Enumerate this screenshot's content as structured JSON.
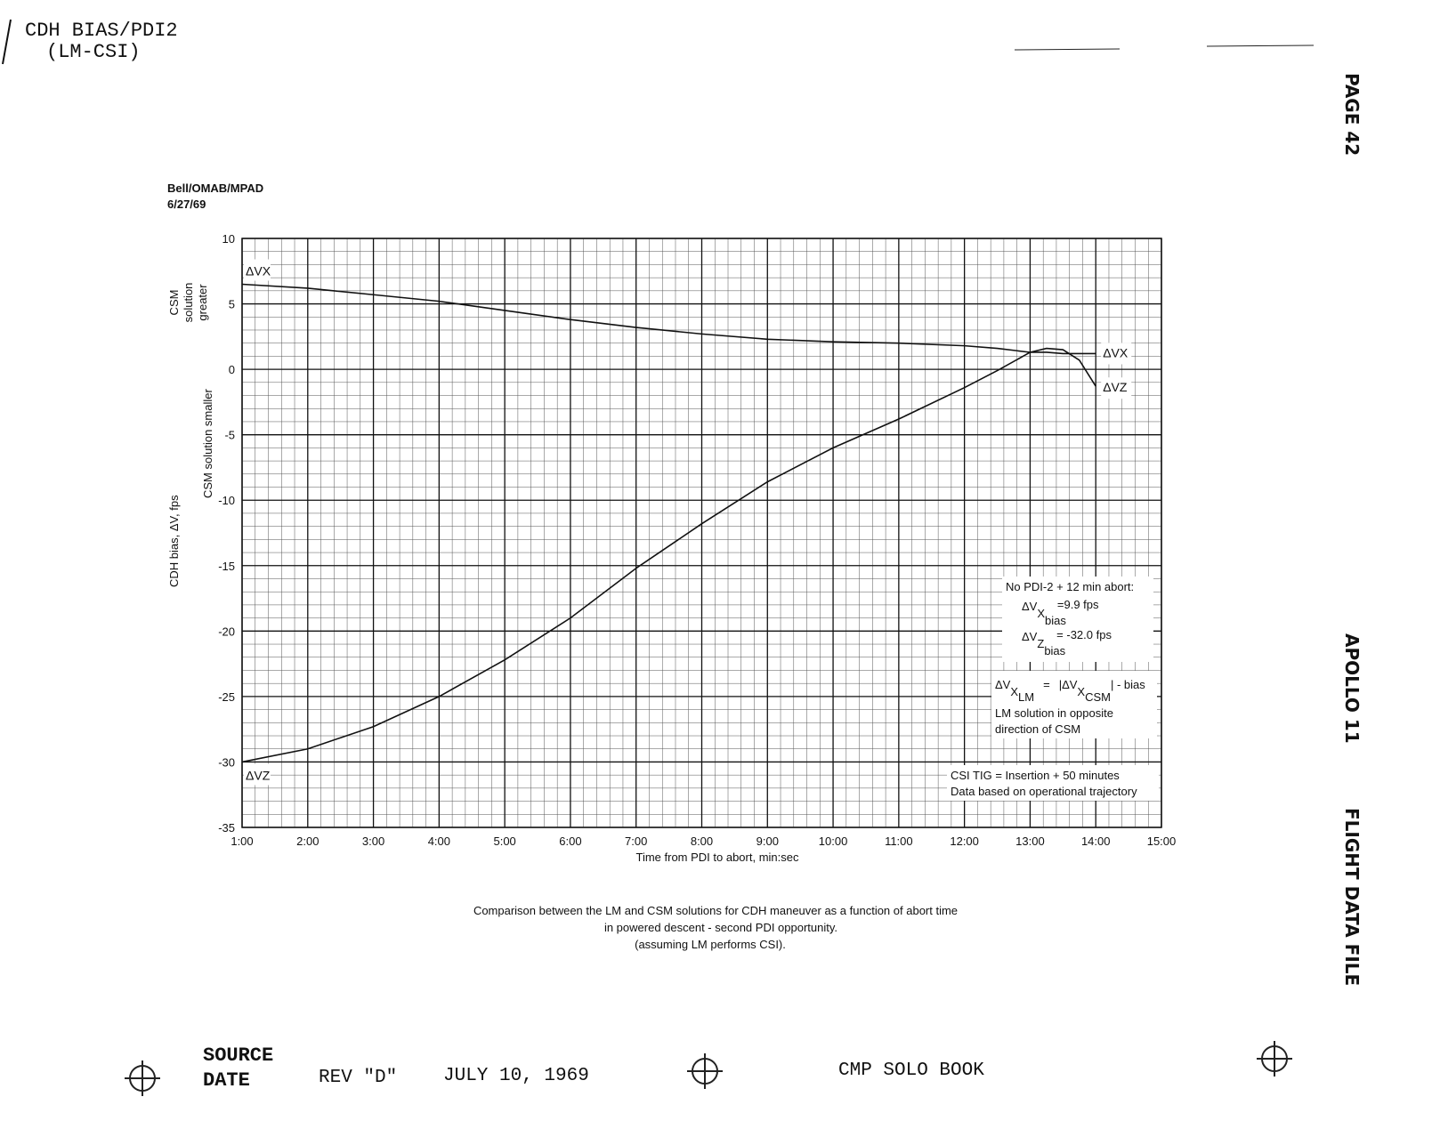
{
  "document": {
    "header": {
      "title": "CDH BIAS/PDI2",
      "subtitle": "(LM-CSI)"
    },
    "side": {
      "page": "PAGE 42",
      "mission": "APOLLO 11",
      "book": "FLIGHT DATA FILE"
    },
    "footer": {
      "source": "SOURCE",
      "date": "DATE",
      "rev": "REV \"D\"",
      "date_value": "JULY 10, 1969",
      "book": "CMP SOLO BOOK"
    }
  },
  "chart_data": {
    "type": "line",
    "source": "Bell/OMAB/MPAD",
    "source_date": "6/27/69",
    "xlabel": "Time from PDI to abort, min:sec",
    "ylabel": "CDH bias, ΔV, fps",
    "ylabel_lower": "CSM solution smaller",
    "ylabel_upper": [
      "CSM",
      "solution",
      "greater"
    ],
    "caption": [
      "Comparison between the LM and CSM solutions for CDH maneuver as a function of abort time",
      "in powered descent - second PDI opportunity.",
      "(assuming LM performs CSI)."
    ],
    "x": [
      1,
      2,
      3,
      4,
      5,
      6,
      7,
      8,
      9,
      10,
      11,
      12,
      12.5,
      13,
      13.25,
      13.5,
      13.75,
      14
    ],
    "series": [
      {
        "name": "ΔVX",
        "color": "#111111",
        "values": [
          6.5,
          6.2,
          5.7,
          5.2,
          4.5,
          3.8,
          3.2,
          2.7,
          2.3,
          2.1,
          2.0,
          1.8,
          1.6,
          1.3,
          1.3,
          1.2,
          1.2,
          1.2
        ]
      },
      {
        "name": "ΔVZ",
        "color": "#111111",
        "values": [
          -30,
          -29,
          -27.3,
          -25,
          -22.2,
          -19,
          -15.2,
          -11.8,
          -8.6,
          -6,
          -3.8,
          -1.4,
          -0.1,
          1.3,
          1.6,
          1.5,
          0.7,
          -1.3
        ]
      }
    ],
    "xlim": [
      1,
      15
    ],
    "xticks": [
      {
        "value": 1,
        "label": "1:00"
      },
      {
        "value": 2,
        "label": "2:00"
      },
      {
        "value": 3,
        "label": "3:00"
      },
      {
        "value": 4,
        "label": "4:00"
      },
      {
        "value": 5,
        "label": "5:00"
      },
      {
        "value": 6,
        "label": "6:00"
      },
      {
        "value": 7,
        "label": "7:00"
      },
      {
        "value": 8,
        "label": "8:00"
      },
      {
        "value": 9,
        "label": "9:00"
      },
      {
        "value": 10,
        "label": "10:00"
      },
      {
        "value": 11,
        "label": "11:00"
      },
      {
        "value": 12,
        "label": "12:00"
      },
      {
        "value": 13,
        "label": "13:00"
      },
      {
        "value": 14,
        "label": "14:00"
      },
      {
        "value": 15,
        "label": "15:00"
      }
    ],
    "ylim": [
      -35,
      10
    ],
    "yticks": [
      -35,
      -30,
      -25,
      -20,
      -15,
      -10,
      -5,
      0,
      5,
      10
    ],
    "grid": true,
    "annotations": {
      "abort": {
        "title": "No PDI-2 + 12 min abort:",
        "x_sym": "ΔV",
        "x_sub": "X",
        "x_sub2": "bias",
        "x_text": "=9.9 fps",
        "z_sym": "ΔV",
        "z_sub": "Z",
        "z_sub2": "bias",
        "z_text": "= -32.0 fps"
      },
      "formula": {
        "lhs": "ΔV",
        "lhs_sub": "X",
        "lhs_sub2": "LM",
        "eq": "=",
        "rhs": "|ΔV",
        "rhs_sub": "X",
        "rhs_sub2": "CSM",
        "rhs_end": "| - bias",
        "line2": "LM solution in opposite",
        "line3": "direction of CSM"
      },
      "csi": {
        "line1": "CSI TIG = Insertion + 50 minutes",
        "line2": "Data based on operational trajectory"
      }
    }
  }
}
